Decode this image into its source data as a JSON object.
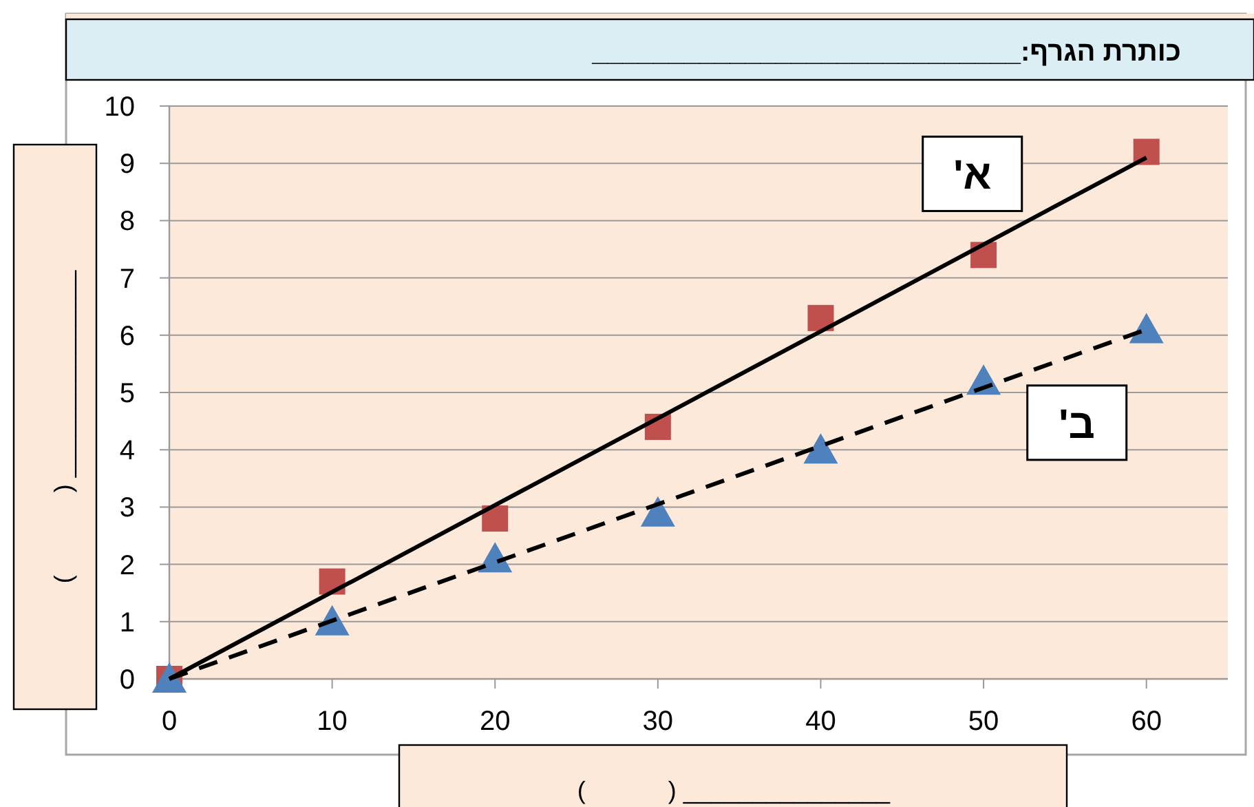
{
  "chart_data": {
    "type": "scatter",
    "title": "כותרת הגרף:____________________________",
    "xlabel": "(            ) _______________",
    "ylabel": "(            ) _______________",
    "xlim": [
      0,
      65
    ],
    "ylim": [
      0,
      10
    ],
    "xticks": [
      0,
      10,
      20,
      30,
      40,
      50,
      60
    ],
    "yticks": [
      0,
      1,
      2,
      3,
      4,
      5,
      6,
      7,
      8,
      9,
      10
    ],
    "grid": "y",
    "legend": false,
    "series": [
      {
        "type": "scatter",
        "marker": "square",
        "color": "#c0504d",
        "x": [
          0,
          10,
          20,
          30,
          40,
          50,
          60
        ],
        "values": [
          0,
          1.7,
          2.8,
          4.4,
          6.3,
          7.4,
          9.2
        ]
      },
      {
        "type": "scatter",
        "marker": "triangle",
        "color": "#4f81bd",
        "x": [
          0,
          10,
          20,
          30,
          40,
          50,
          60
        ],
        "values": [
          0,
          1.0,
          2.1,
          2.9,
          4.0,
          5.2,
          6.1
        ]
      },
      {
        "type": "line",
        "name": "א'",
        "color": "#000000",
        "line_style": "solid",
        "marker": "none",
        "x": [
          0,
          60
        ],
        "values": [
          0,
          9.1
        ]
      },
      {
        "type": "line",
        "name": "ב'",
        "color": "#000000",
        "line_style": "dashed",
        "marker": "none",
        "x": [
          0,
          60
        ],
        "values": [
          0,
          6.1
        ]
      }
    ]
  }
}
